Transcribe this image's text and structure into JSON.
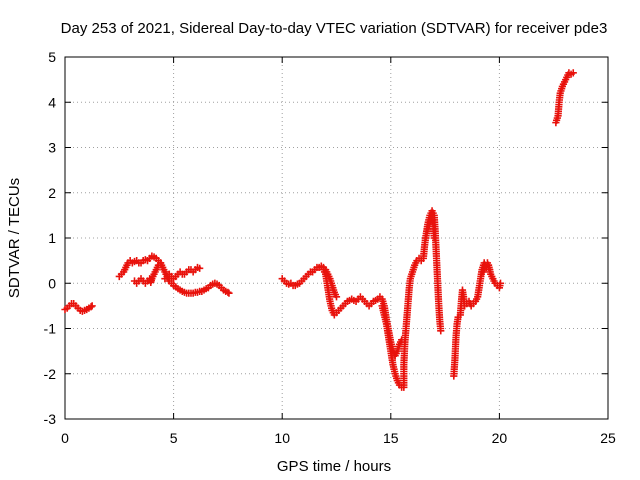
{
  "chart_data": {
    "type": "scatter",
    "title": "Day 253 of 2021, Sidereal Day-to-day VTEC variation (SDTVAR) for receiver pde3",
    "xlabel": "GPS time / hours",
    "ylabel": "SDTVAR / TECUs",
    "xlim": [
      0,
      25
    ],
    "ylim": [
      -3,
      5
    ],
    "xticks": [
      0,
      5,
      10,
      15,
      20,
      25
    ],
    "yticks": [
      -3,
      -2,
      -1,
      0,
      1,
      2,
      3,
      4,
      5
    ],
    "grid": true,
    "marker": "plus",
    "color": "#e8120c",
    "series": [
      {
        "name": "SDTVAR",
        "segments": [
          [
            [
              0.0,
              -0.58
            ],
            [
              0.1,
              -0.55
            ],
            [
              0.2,
              -0.5
            ],
            [
              0.3,
              -0.45
            ],
            [
              0.4,
              -0.45
            ],
            [
              0.5,
              -0.5
            ],
            [
              0.6,
              -0.55
            ],
            [
              0.7,
              -0.6
            ],
            [
              0.8,
              -0.62
            ],
            [
              0.9,
              -0.6
            ],
            [
              1.0,
              -0.58
            ],
            [
              1.1,
              -0.55
            ],
            [
              1.2,
              -0.52
            ],
            [
              1.25,
              -0.5
            ]
          ],
          [
            [
              2.5,
              0.15
            ],
            [
              2.6,
              0.2
            ],
            [
              2.7,
              0.25
            ],
            [
              2.8,
              0.35
            ],
            [
              2.9,
              0.45
            ],
            [
              3.0,
              0.5
            ],
            [
              3.1,
              0.45
            ],
            [
              3.2,
              0.48
            ],
            [
              3.3,
              0.5
            ],
            [
              3.4,
              0.45
            ],
            [
              3.5,
              0.45
            ],
            [
              3.6,
              0.5
            ],
            [
              3.7,
              0.52
            ],
            [
              3.8,
              0.5
            ],
            [
              3.9,
              0.55
            ],
            [
              4.0,
              0.6
            ],
            [
              4.1,
              0.58
            ],
            [
              4.2,
              0.55
            ],
            [
              4.3,
              0.5
            ],
            [
              4.4,
              0.45
            ],
            [
              4.5,
              0.35
            ],
            [
              4.6,
              0.25
            ],
            [
              4.7,
              0.15
            ],
            [
              4.8,
              0.05
            ],
            [
              4.9,
              0.0
            ],
            [
              5.0,
              -0.05
            ],
            [
              5.1,
              -0.08
            ],
            [
              5.2,
              -0.12
            ],
            [
              5.3,
              -0.15
            ],
            [
              5.4,
              -0.18
            ],
            [
              5.5,
              -0.2
            ],
            [
              5.6,
              -0.22
            ],
            [
              5.7,
              -0.22
            ],
            [
              5.8,
              -0.22
            ],
            [
              5.9,
              -0.22
            ],
            [
              6.0,
              -0.2
            ],
            [
              6.1,
              -0.2
            ],
            [
              6.2,
              -0.18
            ],
            [
              6.3,
              -0.18
            ],
            [
              6.4,
              -0.15
            ],
            [
              6.5,
              -0.12
            ],
            [
              6.6,
              -0.1
            ],
            [
              6.7,
              -0.05
            ],
            [
              6.8,
              -0.02
            ],
            [
              6.9,
              0.0
            ],
            [
              7.0,
              -0.02
            ],
            [
              7.1,
              -0.05
            ],
            [
              7.2,
              -0.1
            ],
            [
              7.3,
              -0.15
            ],
            [
              7.4,
              -0.18
            ],
            [
              7.5,
              -0.2
            ],
            [
              7.55,
              -0.22
            ]
          ],
          [
            [
              3.2,
              0.05
            ],
            [
              3.3,
              0.0
            ],
            [
              3.4,
              0.05
            ],
            [
              3.5,
              0.1
            ],
            [
              3.6,
              0.05
            ],
            [
              3.7,
              0.0
            ],
            [
              3.8,
              0.05
            ],
            [
              3.9,
              0.1
            ],
            [
              3.95,
              0.02
            ],
            [
              4.0,
              0.1
            ],
            [
              4.1,
              0.2
            ],
            [
              4.2,
              0.3
            ],
            [
              4.3,
              0.4
            ],
            [
              4.4,
              0.45
            ]
          ],
          [
            [
              4.6,
              0.1
            ],
            [
              4.7,
              0.15
            ],
            [
              4.8,
              0.2
            ],
            [
              4.9,
              0.15
            ],
            [
              5.0,
              0.1
            ],
            [
              5.1,
              0.15
            ],
            [
              5.2,
              0.2
            ],
            [
              5.3,
              0.25
            ],
            [
              5.4,
              0.2
            ],
            [
              5.5,
              0.2
            ],
            [
              5.6,
              0.25
            ],
            [
              5.7,
              0.3
            ],
            [
              5.8,
              0.3
            ],
            [
              5.9,
              0.25
            ],
            [
              6.0,
              0.3
            ],
            [
              6.1,
              0.35
            ],
            [
              6.2,
              0.33
            ]
          ],
          [
            [
              10.0,
              0.1
            ],
            [
              10.1,
              0.05
            ],
            [
              10.2,
              0.0
            ],
            [
              10.3,
              -0.02
            ],
            [
              10.4,
              0.0
            ],
            [
              10.5,
              -0.05
            ],
            [
              10.6,
              -0.05
            ],
            [
              10.7,
              -0.02
            ],
            [
              10.8,
              0.0
            ],
            [
              10.9,
              0.05
            ],
            [
              11.0,
              0.1
            ],
            [
              11.1,
              0.15
            ],
            [
              11.2,
              0.2
            ],
            [
              11.3,
              0.25
            ],
            [
              11.4,
              0.25
            ],
            [
              11.5,
              0.3
            ],
            [
              11.6,
              0.35
            ],
            [
              11.7,
              0.35
            ],
            [
              11.8,
              0.38
            ],
            [
              11.9,
              0.35
            ],
            [
              12.0,
              0.3
            ],
            [
              12.1,
              0.2
            ],
            [
              12.2,
              0.1
            ],
            [
              12.3,
              -0.05
            ],
            [
              12.4,
              -0.2
            ],
            [
              12.5,
              -0.3
            ]
          ],
          [
            [
              11.9,
              0.3
            ],
            [
              12.0,
              0.2
            ],
            [
              12.1,
              -0.1
            ],
            [
              12.2,
              -0.4
            ],
            [
              12.3,
              -0.6
            ],
            [
              12.4,
              -0.7
            ],
            [
              12.5,
              -0.65
            ],
            [
              12.6,
              -0.6
            ],
            [
              12.7,
              -0.55
            ],
            [
              12.8,
              -0.5
            ],
            [
              12.9,
              -0.45
            ],
            [
              13.0,
              -0.4
            ],
            [
              13.1,
              -0.38
            ],
            [
              13.2,
              -0.35
            ],
            [
              13.3,
              -0.38
            ],
            [
              13.4,
              -0.4
            ],
            [
              13.5,
              -0.35
            ],
            [
              13.6,
              -0.3
            ],
            [
              13.7,
              -0.35
            ],
            [
              13.8,
              -0.4
            ],
            [
              13.9,
              -0.45
            ],
            [
              14.0,
              -0.5
            ],
            [
              14.1,
              -0.45
            ],
            [
              14.2,
              -0.4
            ],
            [
              14.3,
              -0.38
            ],
            [
              14.4,
              -0.35
            ],
            [
              14.5,
              -0.3
            ],
            [
              14.6,
              -0.35
            ],
            [
              14.7,
              -0.5
            ],
            [
              14.8,
              -0.8
            ],
            [
              14.9,
              -1.05
            ],
            [
              15.0,
              -1.3
            ],
            [
              15.1,
              -1.5
            ],
            [
              15.2,
              -1.6
            ],
            [
              15.3,
              -1.5
            ],
            [
              15.4,
              -1.35
            ],
            [
              15.5,
              -1.25
            ]
          ],
          [
            [
              14.6,
              -0.5
            ],
            [
              14.7,
              -0.7
            ],
            [
              14.8,
              -0.9
            ],
            [
              14.9,
              -1.2
            ],
            [
              15.0,
              -1.5
            ],
            [
              15.1,
              -1.8
            ],
            [
              15.2,
              -2.0
            ],
            [
              15.3,
              -2.15
            ],
            [
              15.4,
              -2.25
            ],
            [
              15.5,
              -2.3
            ],
            [
              15.6,
              -2.3
            ],
            [
              15.6,
              -1.8
            ],
            [
              15.65,
              -1.3
            ],
            [
              15.7,
              -1.0
            ],
            [
              15.75,
              -0.7
            ],
            [
              15.8,
              -0.4
            ],
            [
              15.85,
              -0.1
            ],
            [
              15.9,
              0.1
            ],
            [
              16.0,
              0.25
            ],
            [
              16.1,
              0.4
            ],
            [
              16.2,
              0.5
            ],
            [
              16.3,
              0.55
            ],
            [
              16.4,
              0.5
            ],
            [
              16.5,
              0.55
            ],
            [
              16.55,
              0.8
            ],
            [
              16.6,
              1.0
            ],
            [
              16.7,
              1.3
            ],
            [
              16.8,
              1.5
            ],
            [
              16.9,
              1.6
            ],
            [
              17.0,
              1.5
            ],
            [
              17.05,
              1.1
            ],
            [
              17.1,
              0.6
            ],
            [
              17.15,
              0.1
            ],
            [
              17.2,
              -0.4
            ],
            [
              17.25,
              -0.8
            ],
            [
              17.3,
              -1.05
            ]
          ],
          [
            [
              16.6,
              1.0
            ],
            [
              16.7,
              1.2
            ],
            [
              16.8,
              1.35
            ],
            [
              16.9,
              1.45
            ],
            [
              16.95,
              1.3
            ],
            [
              17.0,
              1.0
            ]
          ],
          [
            [
              17.9,
              -2.05
            ],
            [
              17.95,
              -1.7
            ],
            [
              18.0,
              -1.2
            ],
            [
              18.05,
              -0.9
            ],
            [
              18.1,
              -0.75
            ],
            [
              18.2,
              -0.7
            ],
            [
              18.25,
              -0.4
            ],
            [
              18.3,
              -0.15
            ],
            [
              18.35,
              -0.3
            ],
            [
              18.4,
              -0.5
            ],
            [
              18.5,
              -0.45
            ],
            [
              18.6,
              -0.4
            ],
            [
              18.7,
              -0.5
            ],
            [
              18.8,
              -0.45
            ],
            [
              18.9,
              -0.4
            ],
            [
              19.0,
              -0.3
            ],
            [
              19.1,
              0.0
            ],
            [
              19.2,
              0.3
            ],
            [
              19.3,
              0.45
            ],
            [
              19.4,
              0.35
            ],
            [
              19.5,
              0.4
            ],
            [
              19.6,
              0.2
            ],
            [
              19.7,
              0.1
            ],
            [
              19.8,
              0.0
            ],
            [
              19.9,
              -0.05
            ],
            [
              20.0,
              -0.1
            ],
            [
              20.05,
              0.0
            ]
          ],
          [
            [
              19.25,
              0.25
            ],
            [
              19.35,
              0.4
            ],
            [
              19.45,
              0.45
            ],
            [
              19.55,
              0.3
            ]
          ],
          [
            [
              22.6,
              3.55
            ],
            [
              22.7,
              3.7
            ],
            [
              22.75,
              4.0
            ],
            [
              22.8,
              4.2
            ],
            [
              22.9,
              4.35
            ],
            [
              23.0,
              4.45
            ],
            [
              23.1,
              4.55
            ],
            [
              23.2,
              4.65
            ],
            [
              23.3,
              4.62
            ],
            [
              23.4,
              4.65
            ]
          ]
        ]
      }
    ]
  }
}
